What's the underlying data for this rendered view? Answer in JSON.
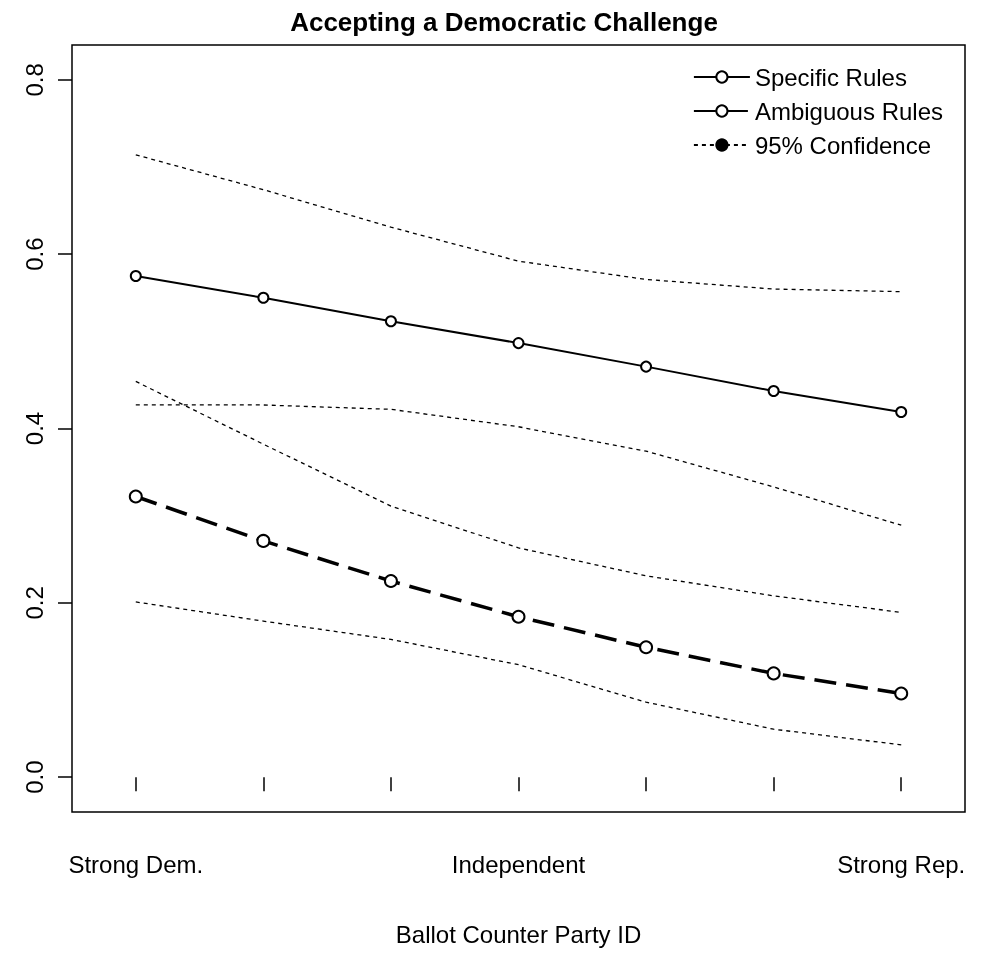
{
  "chart_data": {
    "type": "line",
    "title": "Accepting a Democratic Challenge",
    "xlabel": "Ballot Counter Party ID",
    "categories": [
      "Strong Dem.",
      null,
      null,
      "Independent",
      null,
      null,
      "Strong Rep."
    ],
    "ylim": [
      -0.04,
      0.84
    ],
    "yticks": [
      {
        "value": 0,
        "label": "0.0"
      },
      0.2,
      0.4,
      0.6,
      0.8
    ],
    "grid": false,
    "legend": "top right",
    "series": [
      {
        "name": "Specific Rules",
        "color": "#000000",
        "marker": "circle",
        "line_style": "solid",
        "values": [
          0.575,
          0.55,
          0.523,
          0.498,
          0.471,
          0.443,
          0.419
        ]
      },
      {
        "name": "Ambiguous Rules",
        "color": "#000000",
        "marker": "circle",
        "line_style": "dashed",
        "values": [
          0.322,
          0.271,
          0.225,
          0.184,
          0.149,
          0.119,
          0.096
        ]
      },
      {
        "name": "95% Confidence",
        "color": "#000000",
        "marker": "none",
        "line_style": "dotted",
        "values": [
          0.714,
          0.674,
          0.631,
          0.592,
          0.571,
          0.56,
          0.557
        ]
      },
      {
        "color": "#000000",
        "marker": "none",
        "line_style": "dotted",
        "values": [
          0.427,
          0.427,
          0.422,
          0.402,
          0.374,
          0.333,
          0.289
        ]
      },
      {
        "color": "#000000",
        "marker": "none",
        "line_style": "dotted",
        "values": [
          0.454,
          0.382,
          0.311,
          0.263,
          0.231,
          0.208,
          0.189
        ]
      },
      {
        "color": "#000000",
        "marker": "none",
        "line_style": "dotted",
        "values": [
          0.201,
          0.179,
          0.158,
          0.129,
          0.086,
          0.055,
          0.037
        ]
      }
    ]
  }
}
